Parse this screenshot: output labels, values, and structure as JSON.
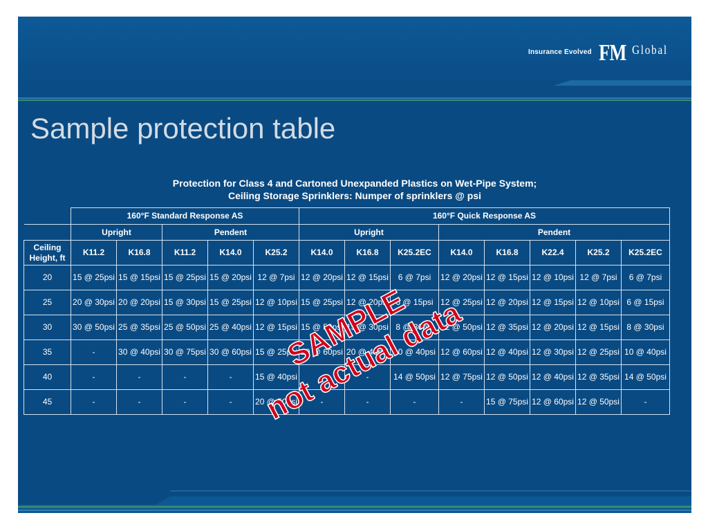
{
  "branding": {
    "tagline": "Insurance Evolved",
    "logo_fm": "FM",
    "logo_global": "Global"
  },
  "slide": {
    "title": "Sample protection table",
    "subtitle_line1": "Protection for Class 4 and  Cartoned Unexpanded Plastics on Wet-Pipe System;",
    "subtitle_line2": "Ceiling Storage Sprinklers:   Numper of sprinklers @ psi"
  },
  "table": {
    "group_headers": [
      "160°F Standard Response AS",
      "160°F Quick Response AS"
    ],
    "subgroup_headers": [
      "Upright",
      "Pendent",
      "Upright",
      "Pendent"
    ],
    "row_header": "Ceiling Height, ft",
    "k_factors": [
      "K11.2",
      "K16.8",
      "K11.2",
      "K14.0",
      "K25.2",
      "K14.0",
      "K16.8",
      "K25.2EC",
      "K14.0",
      "K16.8",
      "K22.4",
      "K25.2",
      "K25.2EC"
    ],
    "rows": [
      {
        "height": "20",
        "cells": [
          "15 @ 25psi",
          "15 @ 15psi",
          "15 @ 25psi",
          "15 @ 20psi",
          "12 @ 7psi",
          "12 @ 20psi",
          "12 @ 15psi",
          "6 @ 7psi",
          "12 @ 20psi",
          "12 @ 15psi",
          "12 @ 10psi",
          "12 @ 7psi",
          "6 @ 7psi"
        ]
      },
      {
        "height": "25",
        "cells": [
          "20 @ 30psi",
          "20 @ 20psi",
          "15 @ 30psi",
          "15 @ 25psi",
          "12 @ 10psi",
          "15 @ 25psi",
          "12 @ 20psi",
          "6 @ 15psi",
          "12 @ 25psi",
          "12 @ 20psi",
          "12 @ 15psi",
          "12 @ 10psi",
          "6 @ 15psi"
        ]
      },
      {
        "height": "30",
        "cells": [
          "30 @ 50psi",
          "25 @ 35psi",
          "25 @ 50psi",
          "25 @ 40psi",
          "12 @ 15psi",
          "15 @ 50psi",
          "15 @ 30psi",
          "8 @ 30psi",
          "12 @ 50psi",
          "12 @ 35psi",
          "12 @ 20psi",
          "12 @ 15psi",
          "8 @ 30psi"
        ]
      },
      {
        "height": "35",
        "cells": [
          "-",
          "30 @ 40psi",
          "30 @ 75psi",
          "30 @ 60psi",
          "15 @ 25psi",
          "20 @ 60psi",
          "20 @ 40psi",
          "10 @ 40psi",
          "12 @ 60psi",
          "12 @ 40psi",
          "12 @ 30psi",
          "12 @ 25psi",
          "10 @ 40psi"
        ]
      },
      {
        "height": "40",
        "cells": [
          "-",
          "-",
          "-",
          "-",
          "15 @ 40psi",
          "-",
          "-",
          "14 @ 50psi",
          "12 @ 75psi",
          "12 @ 50psi",
          "12 @ 40psi",
          "12 @ 35psi",
          "14 @ 50psi"
        ]
      },
      {
        "height": "45",
        "cells": [
          "-",
          "-",
          "-",
          "-",
          "20 @ 50psi",
          "-",
          "-",
          "-",
          "-",
          "15 @ 75psi",
          "12 @ 60psi",
          "12 @ 50psi",
          "-"
        ]
      }
    ]
  },
  "watermark": {
    "line1": "SAMPLE",
    "line2": "not actual data",
    "color": "#d0021b"
  },
  "colors": {
    "background": "#0a4a82",
    "title": "#d3dbe4",
    "accent_green": "#3a8c6e"
  }
}
